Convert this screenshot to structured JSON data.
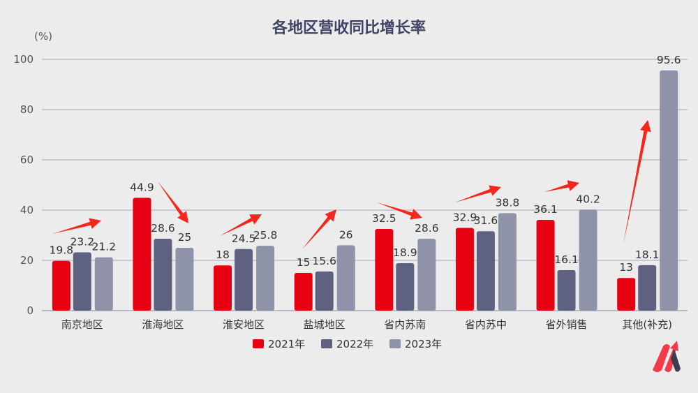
{
  "chart_data": {
    "type": "bar",
    "title": "各地区营收同比增长率",
    "ylabel": "(%)",
    "xlabel": "",
    "ylim": [
      0,
      100
    ],
    "yticks": [
      0,
      20,
      40,
      60,
      80,
      100
    ],
    "grid": true,
    "legend_position": "bottom",
    "categories": [
      "南京地区",
      "淮海地区",
      "淮安地区",
      "盐城地区",
      "省内苏南",
      "省内苏中",
      "省外销售",
      "其他(补充)"
    ],
    "series": [
      {
        "name": "2021年",
        "color": "#e60012",
        "values": [
          19.8,
          44.9,
          18,
          15,
          32.5,
          32.9,
          36.1,
          13
        ]
      },
      {
        "name": "2022年",
        "color": "#5f6180",
        "values": [
          23.2,
          28.6,
          24.5,
          15.6,
          18.9,
          31.6,
          16.1,
          18.1
        ]
      },
      {
        "name": "2023年",
        "color": "#8f93aa",
        "values": [
          21.2,
          25,
          25.8,
          26,
          28.6,
          38.8,
          40.2,
          95.6
        ]
      }
    ],
    "annotations": "red trend arrows above each category group"
  }
}
